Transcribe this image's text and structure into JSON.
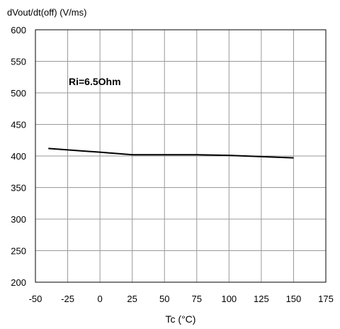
{
  "chart_data": {
    "type": "line",
    "title": "",
    "ylabel": "dVout/dt(off) (V/ms)",
    "xlabel": "Tc (°C)",
    "annotation": "Ri=6.5Ohm",
    "xlim": [
      -50,
      175
    ],
    "ylim": [
      200,
      600
    ],
    "x_ticks": [
      -50,
      -25,
      0,
      25,
      50,
      75,
      100,
      125,
      150,
      175
    ],
    "y_ticks": [
      200,
      250,
      300,
      350,
      400,
      450,
      500,
      550,
      600
    ],
    "grid": true,
    "series": [
      {
        "x": [
          -40,
          0,
          25,
          50,
          75,
          100,
          125,
          150
        ],
        "y": [
          412,
          406,
          402,
          402,
          402,
          401,
          399,
          397
        ]
      }
    ]
  }
}
